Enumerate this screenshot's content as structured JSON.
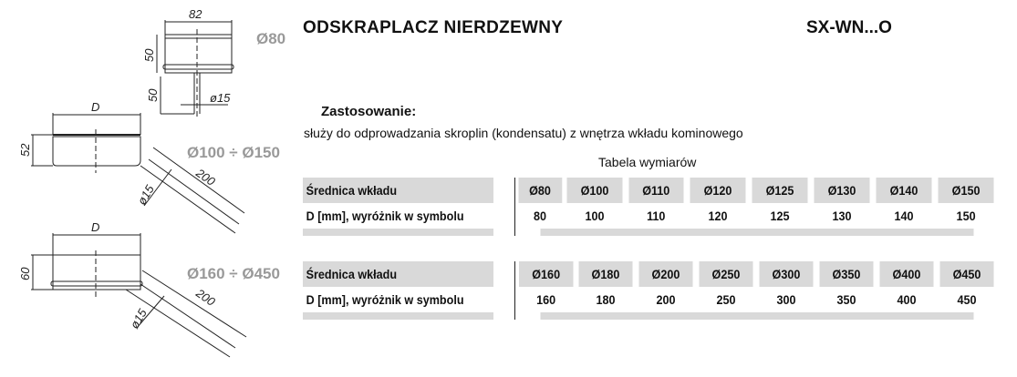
{
  "header": {
    "title": "ODSKRAPLACZ NIERDZEWNY",
    "code": "SX-WN...O"
  },
  "drawings": [
    {
      "label": "Ø80",
      "dims": [
        "82",
        "50",
        "50",
        "ø15"
      ]
    },
    {
      "label": "Ø100 ÷ Ø150",
      "dims": [
        "D",
        "52",
        "200",
        "ø15"
      ]
    },
    {
      "label": "Ø160 ÷ Ø450",
      "dims": [
        "D",
        "60",
        "200",
        "ø15"
      ]
    }
  ],
  "usage": {
    "heading": "Zastosowanie:",
    "text": "służy do odprowadzania skroplin (kondensatu) z wnętrza wkładu kominowego"
  },
  "table_title": "Tabela wymiarów",
  "tables": [
    {
      "row1_label": "Średnica wkładu",
      "row2_label": "D [mm],  wyróżnik w symbolu",
      "diameters": [
        "Ø80",
        "Ø100",
        "Ø110",
        "Ø120",
        "Ø125",
        "Ø130",
        "Ø140",
        "Ø150"
      ],
      "values": [
        "80",
        "100",
        "110",
        "120",
        "125",
        "130",
        "140",
        "150"
      ]
    },
    {
      "row1_label": "Średnica wkładu",
      "row2_label": "D [mm],  wyróżnik w symbolu",
      "diameters": [
        "Ø160",
        "Ø180",
        "Ø200",
        "Ø250",
        "Ø300",
        "Ø350",
        "Ø400",
        "Ø450"
      ],
      "values": [
        "160",
        "180",
        "200",
        "250",
        "300",
        "350",
        "400",
        "450"
      ]
    }
  ]
}
